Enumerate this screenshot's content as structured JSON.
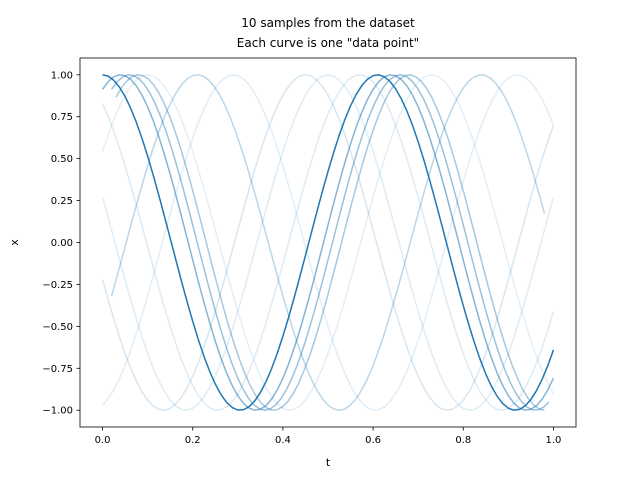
{
  "chart_data": {
    "type": "line",
    "title": [
      "10 samples from the dataset",
      "Each curve is one \"data point\""
    ],
    "xlabel": "t",
    "ylabel": "x",
    "xlim": [
      -0.05,
      1.05
    ],
    "ylim": [
      -1.1,
      1.1
    ],
    "x_ticks": [
      0.0,
      0.2,
      0.4,
      0.6,
      0.8,
      1.0
    ],
    "x_tick_labels": [
      "0.0",
      "0.2",
      "0.4",
      "0.6",
      "0.8",
      "1.0"
    ],
    "y_ticks": [
      -1.0,
      -0.75,
      -0.5,
      -0.25,
      0.0,
      0.25,
      0.5,
      0.75,
      1.0
    ],
    "y_tick_labels": [
      "−1.00",
      "−0.75",
      "−0.50",
      "−0.25",
      "0.00",
      "0.25",
      "0.50",
      "0.75",
      "1.00"
    ],
    "grid": false,
    "color": "#1f77b4",
    "series": [
      {
        "t_start": 0.0,
        "t_end": 1.0,
        "period": 0.61,
        "peak_t": 0.61,
        "opacity": 1.0
      },
      {
        "t_start": 0.0,
        "t_end": 1.0,
        "period": 0.6,
        "peak_t": 0.64,
        "opacity": 0.55
      },
      {
        "t_start": 0.02,
        "t_end": 0.99,
        "period": 0.6,
        "peak_t": 0.66,
        "opacity": 0.45
      },
      {
        "t_start": 0.03,
        "t_end": 0.98,
        "period": 0.6,
        "peak_t": 0.68,
        "opacity": 0.4
      },
      {
        "t_start": 0.02,
        "t_end": 0.98,
        "period": 0.63,
        "peak_t": 0.84,
        "opacity": 0.3
      },
      {
        "t_start": 0.0,
        "t_end": 1.0,
        "period": 0.63,
        "peak_t": 0.45,
        "opacity": 0.18
      },
      {
        "t_start": 0.0,
        "t_end": 1.0,
        "period": 0.63,
        "peak_t": 0.57,
        "opacity": 0.15
      },
      {
        "t_start": 0.0,
        "t_end": 1.0,
        "period": 0.63,
        "peak_t": 0.5,
        "opacity": 0.14
      },
      {
        "t_start": 0.0,
        "t_end": 1.0,
        "period": 0.63,
        "peak_t": 0.92,
        "opacity": 0.13
      },
      {
        "t_start": 0.0,
        "t_end": 1.0,
        "period": 0.63,
        "peak_t": 0.73,
        "opacity": 0.12
      }
    ]
  }
}
